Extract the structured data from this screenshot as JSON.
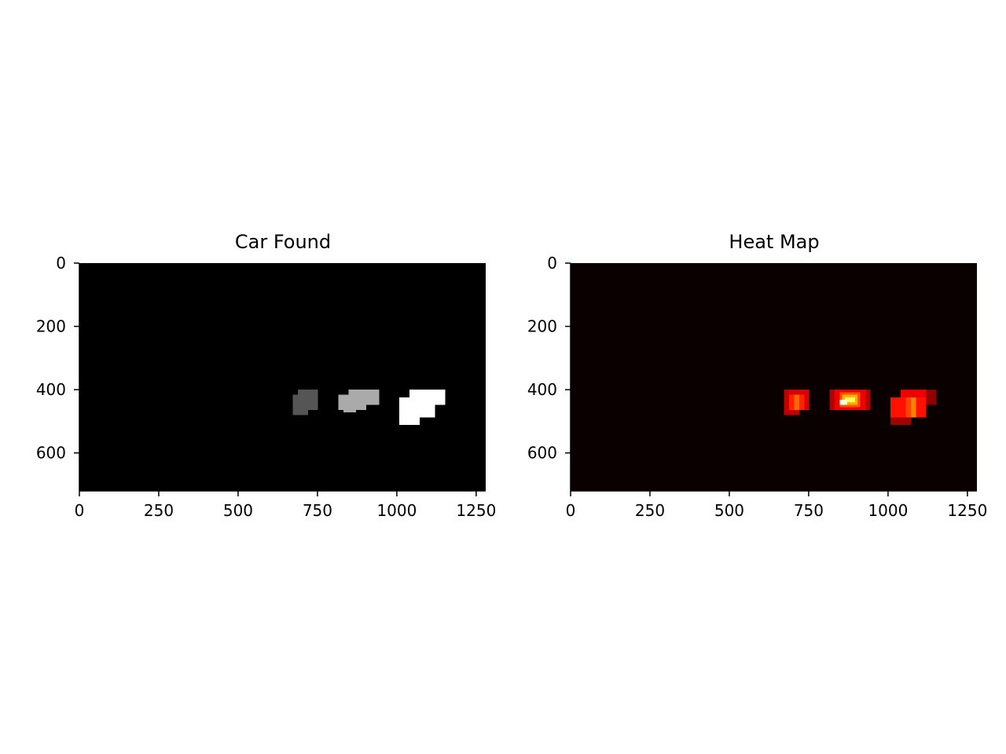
{
  "chart_data": [
    {
      "type": "heatmap",
      "title": "Car Found",
      "colormap": "gray",
      "xlim": [
        0,
        1280
      ],
      "ylim": [
        720,
        0
      ],
      "xticks": [
        0,
        250,
        500,
        750,
        1000,
        1250
      ],
      "yticks": [
        0,
        200,
        400,
        600
      ],
      "xtick_labels": [
        "0",
        "250",
        "500",
        "750",
        "1000",
        "1250"
      ],
      "ytick_labels": [
        "0",
        "200",
        "400",
        "600"
      ],
      "background_color": "#000000",
      "regions": [
        {
          "label": 1,
          "color": "#555555",
          "rects": [
            [
              688,
              400,
              752,
              464
            ],
            [
              672,
              416,
              720,
              480
            ]
          ]
        },
        {
          "label": 2,
          "color": "#aaaaaa",
          "rects": [
            [
              848,
              400,
              944,
              448
            ],
            [
              816,
              416,
              904,
              464
            ],
            [
              832,
              448,
              872,
              472
            ]
          ]
        },
        {
          "label": 3,
          "color": "#ffffff",
          "rects": [
            [
              1040,
              400,
              1152,
              448
            ],
            [
              1008,
              424,
              1120,
              488
            ],
            [
              1008,
              480,
              1072,
              512
            ]
          ]
        }
      ]
    },
    {
      "type": "heatmap",
      "title": "Heat Map",
      "colormap": "hot",
      "xlim": [
        0,
        1280
      ],
      "ylim": [
        720,
        0
      ],
      "xticks": [
        0,
        250,
        500,
        750,
        1000,
        1250
      ],
      "yticks": [
        0,
        200,
        400,
        600
      ],
      "xtick_labels": [
        "0",
        "250",
        "500",
        "750",
        "1000",
        "1250"
      ],
      "ytick_labels": [
        "0",
        "200",
        "400",
        "600"
      ],
      "background_color": "#0b0000",
      "cells": [
        {
          "x": [
            672,
            720
          ],
          "y": [
            400,
            480
          ],
          "color": "#c00000"
        },
        {
          "x": [
            688,
            752
          ],
          "y": [
            400,
            464
          ],
          "color": "#d80000"
        },
        {
          "x": [
            704,
            720
          ],
          "y": [
            416,
            464
          ],
          "color": "#ff6a00"
        },
        {
          "x": [
            688,
            704
          ],
          "y": [
            416,
            464
          ],
          "color": "#ff2000"
        },
        {
          "x": [
            720,
            736
          ],
          "y": [
            416,
            464
          ],
          "color": "#ff2000"
        },
        {
          "x": [
            816,
            944
          ],
          "y": [
            400,
            464
          ],
          "color": "#b00000"
        },
        {
          "x": [
            832,
            928
          ],
          "y": [
            400,
            464
          ],
          "color": "#ee0000"
        },
        {
          "x": [
            848,
            912
          ],
          "y": [
            408,
            456
          ],
          "color": "#ff5000"
        },
        {
          "x": [
            856,
            904
          ],
          "y": [
            416,
            448
          ],
          "color": "#ffb000"
        },
        {
          "x": [
            864,
            896
          ],
          "y": [
            424,
            440
          ],
          "color": "#ffff60"
        },
        {
          "x": [
            848,
            872
          ],
          "y": [
            432,
            448
          ],
          "color": "#ffffe0"
        },
        {
          "x": [
            1008,
            1072
          ],
          "y": [
            424,
            512
          ],
          "color": "#a00000"
        },
        {
          "x": [
            1040,
            1152
          ],
          "y": [
            400,
            448
          ],
          "color": "#b40000"
        },
        {
          "x": [
            1008,
            1120
          ],
          "y": [
            424,
            488
          ],
          "color": "#ff1000"
        },
        {
          "x": [
            1040,
            1120
          ],
          "y": [
            400,
            424
          ],
          "color": "#ee0000"
        },
        {
          "x": [
            1056,
            1088
          ],
          "y": [
            424,
            488
          ],
          "color": "#ff4400"
        },
        {
          "x": [
            1072,
            1088
          ],
          "y": [
            424,
            488
          ],
          "color": "#ff8000"
        },
        {
          "x": [
            1120,
            1152
          ],
          "y": [
            400,
            448
          ],
          "color": "#900000"
        }
      ]
    }
  ]
}
